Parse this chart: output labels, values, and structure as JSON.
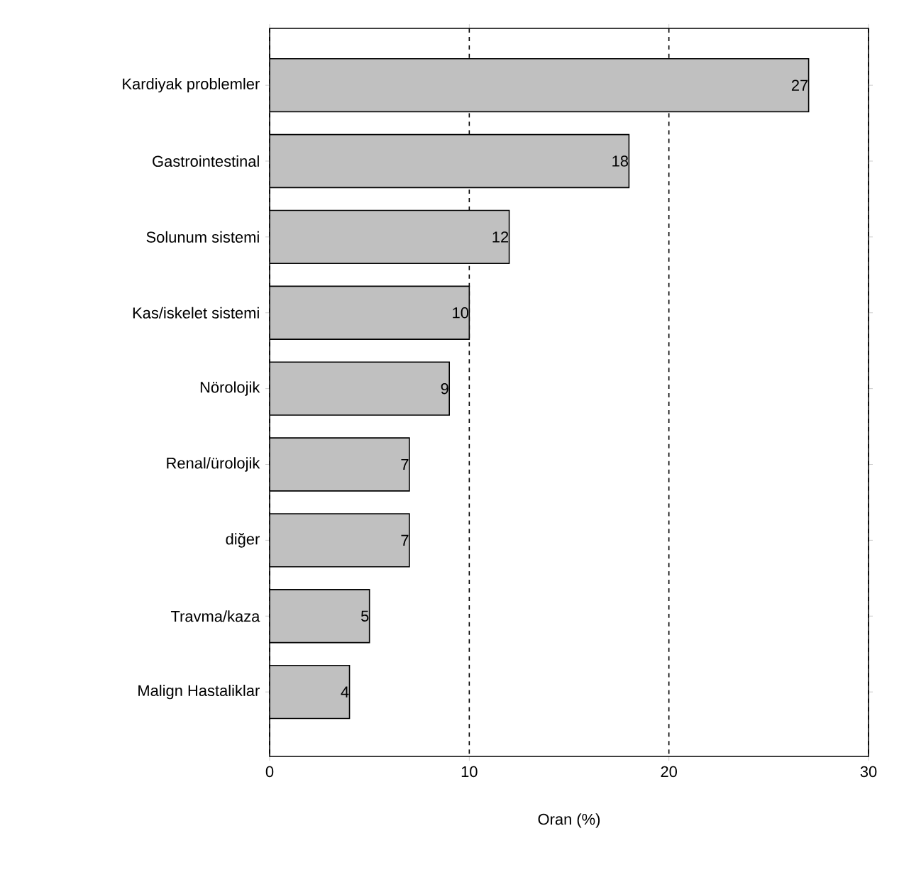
{
  "chart_data": {
    "type": "bar",
    "orientation": "horizontal",
    "xlabel": "Oran (%)",
    "categories": [
      "Kardiyak problemler",
      "Gastrointestinal",
      "Solunum sistemi",
      "Kas/iskelet sistemi",
      "Nörolojik",
      "Renal/ürolojik",
      "diğer",
      "Travma/kaza",
      "Malign Hastaliklar"
    ],
    "values": [
      27,
      18,
      12,
      10,
      9,
      7,
      7,
      5,
      4
    ],
    "color": "#c0c0c0",
    "xlim": [
      0,
      30
    ],
    "xticks": [
      0,
      10,
      20,
      30
    ],
    "grid": "x",
    "data_labels": true
  }
}
